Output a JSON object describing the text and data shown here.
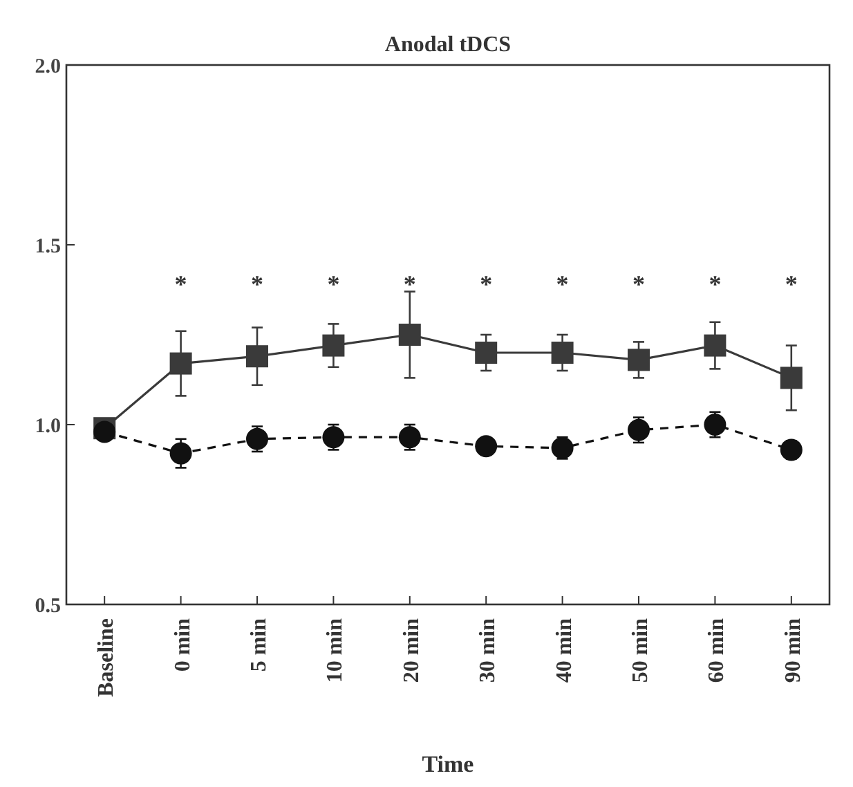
{
  "chart_data": {
    "type": "line",
    "title": "Anodal tDCS",
    "xlabel": "Time",
    "categories": [
      "Baseline",
      "0 min",
      "5 min",
      "10 min",
      "20 min",
      "30 min",
      "40 min",
      "50 min",
      "60 min",
      "90 min"
    ],
    "ylim": [
      0.5,
      2.0
    ],
    "yticks": [
      {
        "value": 0.5,
        "label": "0.5"
      },
      {
        "value": 1.0,
        "label": "1.0"
      },
      {
        "value": 1.5,
        "label": "1.5"
      },
      {
        "value": 2.0,
        "label": "2.0"
      }
    ],
    "series": [
      {
        "color": "#3a3a3a",
        "marker": "square",
        "line_style": "solid",
        "values": [
          0.99,
          1.17,
          1.19,
          1.22,
          1.25,
          1.2,
          1.2,
          1.18,
          1.22,
          1.13
        ],
        "errors": [
          null,
          0.09,
          0.08,
          0.06,
          0.12,
          0.05,
          0.05,
          0.05,
          0.065,
          0.09
        ]
      },
      {
        "color": "#111111",
        "marker": "circle",
        "line_style": "dashed",
        "values": [
          0.98,
          0.92,
          0.96,
          0.965,
          0.965,
          0.94,
          0.935,
          0.985,
          1.0,
          0.93
        ],
        "errors": [
          null,
          0.04,
          0.035,
          0.035,
          0.035,
          0.02,
          0.03,
          0.035,
          0.035,
          0.025
        ]
      }
    ],
    "annotations": [
      "*",
      "*",
      "*",
      "*",
      "*",
      "*",
      "*",
      "*",
      "*"
    ]
  }
}
